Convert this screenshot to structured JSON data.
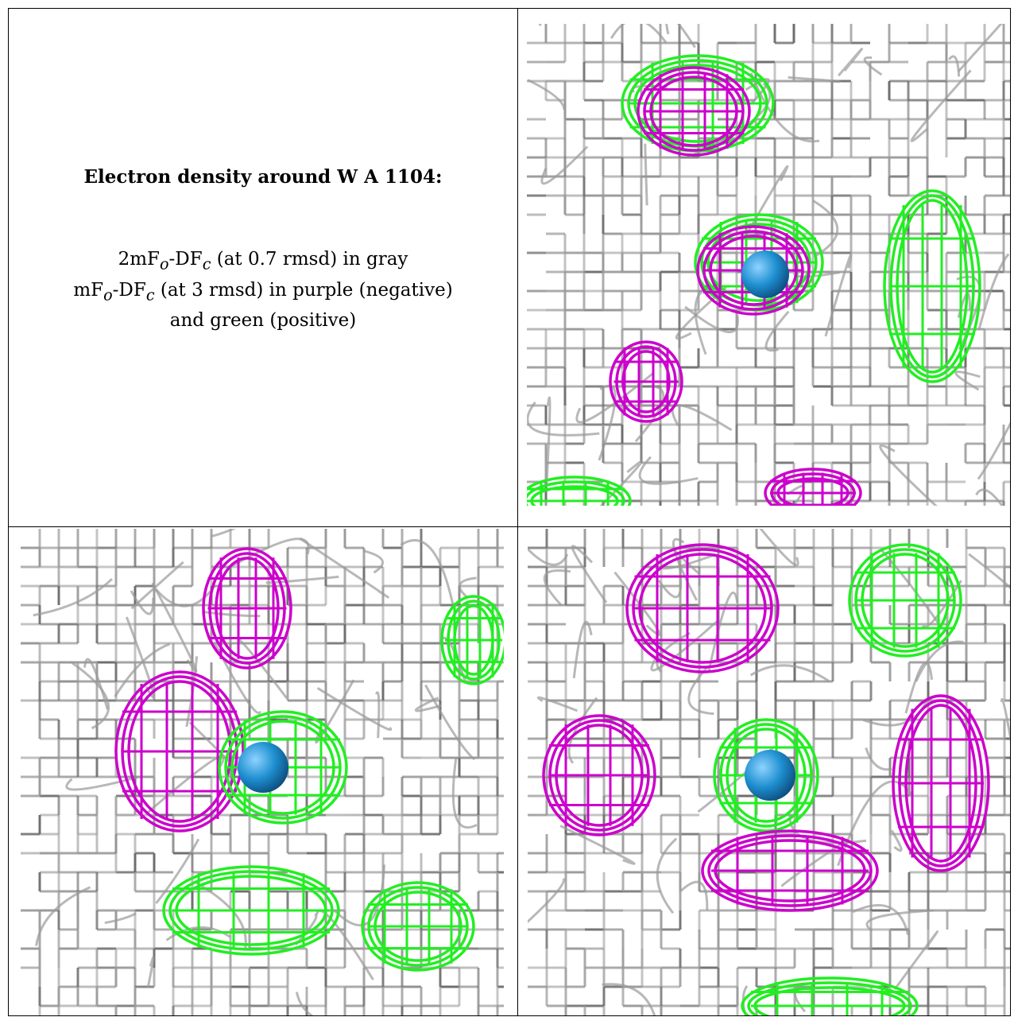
{
  "caption": {
    "title": "Electron density around W A 1104:",
    "line1_pre": "2mF",
    "line1_sub1": "o",
    "line1_mid": "-DF",
    "line1_sub2": "c",
    "line1_post": " (at 0.7 rmsd) in gray",
    "line2_pre": "mF",
    "line2_sub1": "o",
    "line2_mid": "-DF",
    "line2_sub2": "c",
    "line2_post": " (at 3 rmsd) in purple (negative)",
    "line3": "and green (positive)"
  },
  "colors": {
    "gray_mesh": "#9a9a9a",
    "dark_mesh": "#6e6e6e",
    "negative_mesh": "#cc00cc",
    "positive_mesh": "#22ee22",
    "water_atom": "#1e8fd0"
  },
  "panels": [
    {
      "name": "view-top-right",
      "atom": "water"
    },
    {
      "name": "view-bottom-left",
      "atom": "water"
    },
    {
      "name": "view-bottom-right",
      "atom": "water"
    }
  ]
}
